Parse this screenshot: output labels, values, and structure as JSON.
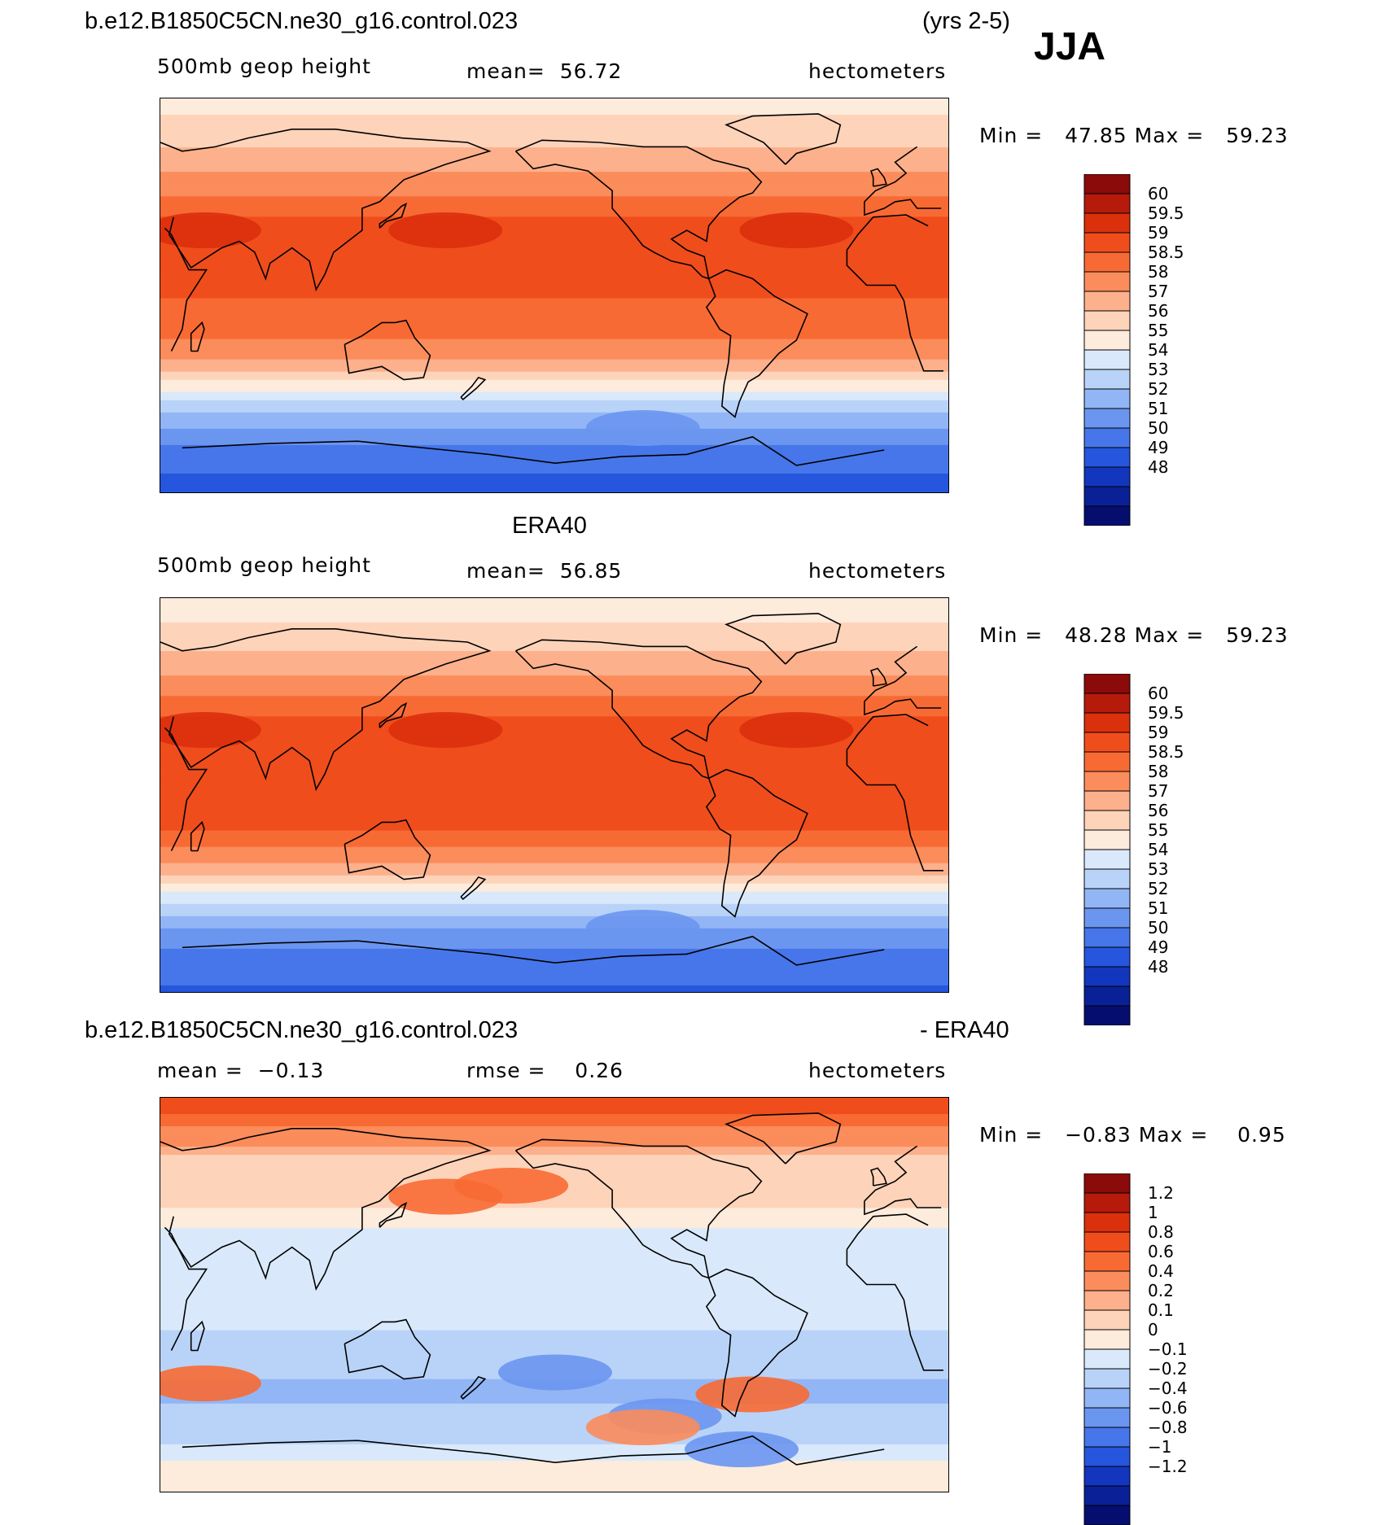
{
  "header": {
    "case_name": "b.e12.B1850C5CN.ne30_g16.control.023",
    "years": "(yrs 2-5)",
    "season": "JJA"
  },
  "panels": [
    {
      "id": "model",
      "title_left": "",
      "title_center": "",
      "title_right": "",
      "field": "500mb geop height",
      "stat1_label": "mean=",
      "stat1_value": "56.72",
      "stat2_label": "",
      "stat2_value": "",
      "units": "hectometers",
      "min_label": "Min =",
      "min_value": "47.85",
      "max_label": "Max =",
      "max_value": "59.23"
    },
    {
      "id": "obs",
      "title_left": "",
      "title_center": "ERA40",
      "title_right": "",
      "field": "500mb geop height",
      "stat1_label": "mean=",
      "stat1_value": "56.85",
      "stat2_label": "",
      "stat2_value": "",
      "units": "hectometers",
      "min_label": "Min =",
      "min_value": "48.28",
      "max_label": "Max =",
      "max_value": "59.23"
    },
    {
      "id": "diff",
      "title_left": "b.e12.B1850C5CN.ne30_g16.control.023",
      "title_center": "",
      "title_right": "- ERA40",
      "field": "",
      "stat1_label": "mean =",
      "stat1_value": "−0.13",
      "stat2_label": "rmse =",
      "stat2_value": "0.26",
      "units": "hectometers",
      "min_label": "Min =",
      "min_value": "−0.83",
      "max_label": "Max =",
      "max_value": "0.95"
    }
  ],
  "chart_data": [
    {
      "type": "heatmap",
      "title": "500mb geop height",
      "subtitle": "b.e12.B1850C5CN.ne30_g16.control.023 (yrs 2-5) JJA",
      "units": "hectometers",
      "mean": 56.72,
      "min": 47.85,
      "max": 59.23,
      "colorbar_levels": [
        "60",
        "59.5",
        "59",
        "58.5",
        "58",
        "57",
        "56",
        "55",
        "54",
        "53",
        "52",
        "51",
        "50",
        "49",
        "48"
      ],
      "colorbar_colors": [
        "#8b0a0a",
        "#b51a0a",
        "#da300c",
        "#f04d1c",
        "#f86a34",
        "#fb8c5b",
        "#fcb08c",
        "#fdd3b9",
        "#fdebdc",
        "#d9e9fb",
        "#b9d3f8",
        "#92b6f5",
        "#6b96f0",
        "#4676ea",
        "#2556dd",
        "#1236be",
        "#0a2096",
        "#050e6e"
      ],
      "lat_profile": [
        [
          90,
          54.6
        ],
        [
          75,
          55.4
        ],
        [
          60,
          56.6
        ],
        [
          45,
          58.1
        ],
        [
          30,
          58.8
        ],
        [
          15,
          58.7
        ],
        [
          0,
          58.5
        ],
        [
          -15,
          58.3
        ],
        [
          -25,
          57.6
        ],
        [
          -35,
          55.8
        ],
        [
          -45,
          53.6
        ],
        [
          -55,
          51.7
        ],
        [
          -65,
          50.3
        ],
        [
          -75,
          49.3
        ],
        [
          -90,
          48.6
        ]
      ]
    },
    {
      "type": "heatmap",
      "title": "500mb geop height",
      "subtitle": "ERA40",
      "units": "hectometers",
      "mean": 56.85,
      "min": 48.28,
      "max": 59.23,
      "colorbar_levels": [
        "60",
        "59.5",
        "59",
        "58.5",
        "58",
        "57",
        "56",
        "55",
        "54",
        "53",
        "52",
        "51",
        "50",
        "49",
        "48"
      ],
      "colorbar_colors": [
        "#8b0a0a",
        "#b51a0a",
        "#da300c",
        "#f04d1c",
        "#f86a34",
        "#fb8c5b",
        "#fcb08c",
        "#fdd3b9",
        "#fdebdc",
        "#d9e9fb",
        "#b9d3f8",
        "#92b6f5",
        "#6b96f0",
        "#4676ea",
        "#2556dd",
        "#1236be",
        "#0a2096",
        "#050e6e"
      ],
      "lat_profile": [
        [
          90,
          54.4
        ],
        [
          75,
          55.2
        ],
        [
          60,
          56.4
        ],
        [
          45,
          58.0
        ],
        [
          30,
          58.8
        ],
        [
          15,
          58.8
        ],
        [
          0,
          58.7
        ],
        [
          -15,
          58.5
        ],
        [
          -25,
          57.9
        ],
        [
          -35,
          56.1
        ],
        [
          -45,
          53.8
        ],
        [
          -55,
          51.8
        ],
        [
          -65,
          50.4
        ],
        [
          -75,
          49.4
        ],
        [
          -90,
          48.9
        ]
      ]
    },
    {
      "type": "heatmap",
      "title": "b.e12.B1850C5CN.ne30_g16.control.023 - ERA40",
      "units": "hectometers",
      "mean": -0.13,
      "rmse": 0.26,
      "min": -0.83,
      "max": 0.95,
      "colorbar_levels": [
        "1.2",
        "1",
        "0.8",
        "0.6",
        "0.4",
        "0.2",
        "0.1",
        "0",
        "−0.1",
        "−0.2",
        "−0.4",
        "−0.6",
        "−0.8",
        "−1",
        "−1.2"
      ],
      "colorbar_colors": [
        "#8b0a0a",
        "#b51a0a",
        "#da300c",
        "#f04d1c",
        "#f86a34",
        "#fb8c5b",
        "#fcb08c",
        "#fdd3b9",
        "#fdebdc",
        "#d9e9fb",
        "#b9d3f8",
        "#92b6f5",
        "#6b96f0",
        "#4676ea",
        "#2556dd",
        "#1236be",
        "#0a2096",
        "#050e6e"
      ],
      "lat_profile": [
        [
          90,
          0.8
        ],
        [
          75,
          0.35
        ],
        [
          60,
          0.0
        ],
        [
          45,
          0.05
        ],
        [
          30,
          -0.1
        ],
        [
          15,
          -0.15
        ],
        [
          0,
          -0.15
        ],
        [
          -15,
          -0.2
        ],
        [
          -30,
          -0.35
        ],
        [
          -45,
          -0.45
        ],
        [
          -60,
          -0.3
        ],
        [
          -75,
          -0.1
        ],
        [
          -90,
          -0.05
        ]
      ]
    }
  ]
}
